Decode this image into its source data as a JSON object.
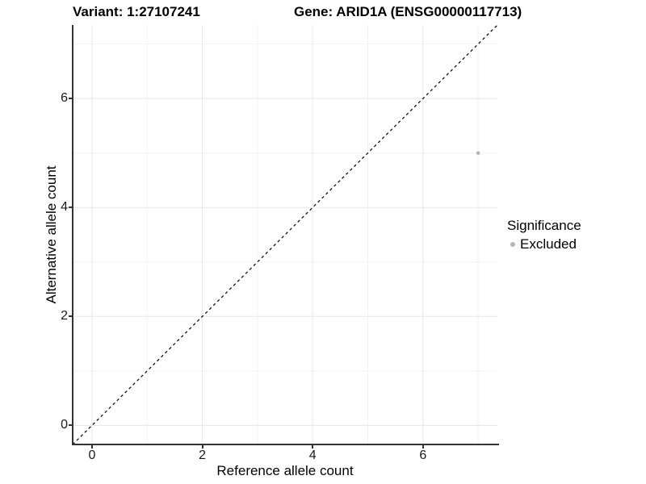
{
  "title": {
    "variant": "Variant: 1:27107241",
    "gene": "Gene: ARID1A (ENSG00000117713)"
  },
  "chart_data": {
    "type": "scatter",
    "title": "Variant: 1:27107241    Gene: ARID1A (ENSG00000117713)",
    "xlabel": "Reference allele count",
    "ylabel": "Alternative allele count",
    "xlim": [
      -0.35,
      7.35
    ],
    "ylim": [
      -0.35,
      7.35
    ],
    "x_ticks": [
      0,
      2,
      4,
      6
    ],
    "y_ticks": [
      0,
      2,
      4,
      6
    ],
    "minor_gridlines": [
      1,
      3,
      5,
      7
    ],
    "grid": true,
    "reference_line": {
      "type": "identity",
      "style": "dashed",
      "color": "#000000"
    },
    "series": [
      {
        "name": "Excluded",
        "color": "#b5b5b5",
        "points": [
          {
            "x": 7,
            "y": 5
          }
        ]
      }
    ],
    "legend": {
      "title": "Significance",
      "position": "right",
      "entries": [
        {
          "label": "Excluded",
          "color": "#b5b5b5"
        }
      ]
    }
  },
  "colors": {
    "background": "#ffffff",
    "axis_line": "#333333",
    "major_grid": "#e7e7e7",
    "minor_grid": "#f2f2f2",
    "tick_text": "#1a1a1a",
    "point": "#b5b5b5"
  }
}
